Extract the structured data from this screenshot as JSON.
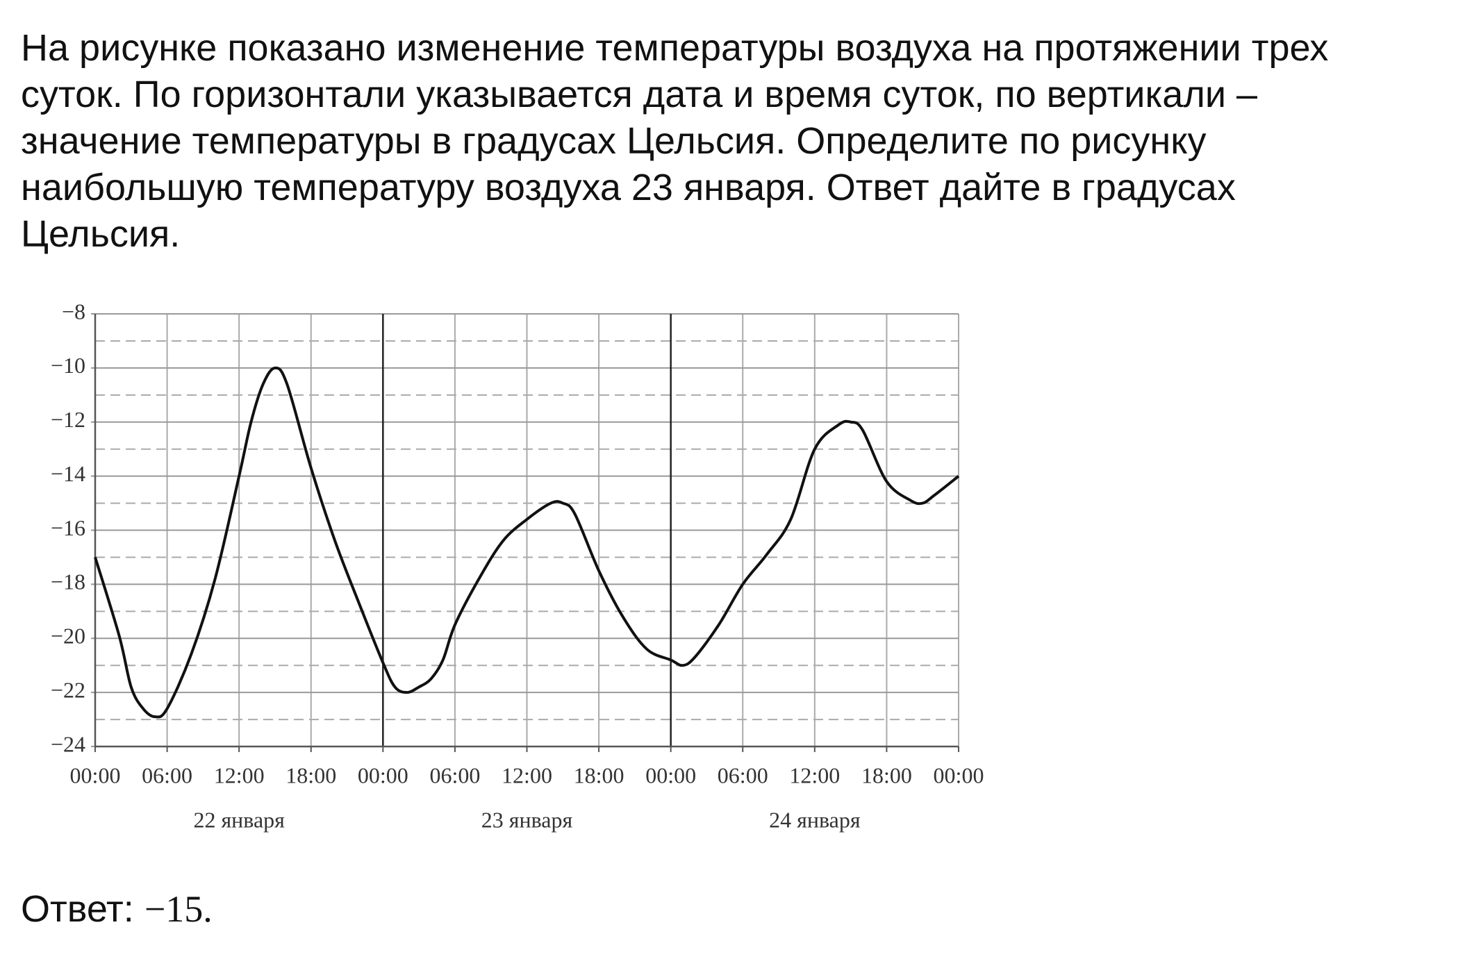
{
  "question_lines": [
    "На рисунке показано изменение температуры воздуха на протяжении трех",
    "суток. По горизонтали указывается дата и время суток, по вертикали –",
    "значение температуры в градусах Цельсия. Определите по рисунку",
    "наибольшую температуру воздуха 23 января. Ответ дайте в градусах",
    "Цельсия."
  ],
  "chart_data": {
    "type": "line",
    "x": [
      0,
      2,
      3,
      4,
      5,
      6,
      8,
      10,
      12,
      13,
      14,
      15,
      16,
      18,
      20,
      22,
      24,
      25,
      26,
      27,
      28,
      29,
      30,
      32,
      34,
      36,
      38,
      39,
      40,
      42,
      44,
      46,
      48,
      49,
      50,
      52,
      54,
      56,
      58,
      60,
      62,
      63,
      64,
      66,
      68,
      69,
      70,
      72
    ],
    "series": [
      {
        "color": "#111111",
        "values": [
          -17,
          -19.9,
          -21.8,
          -22.6,
          -22.9,
          -22.6,
          -20.6,
          -17.8,
          -14,
          -12,
          -10.6,
          -10,
          -10.6,
          -13.7,
          -16.4,
          -18.7,
          -20.9,
          -21.8,
          -22,
          -21.8,
          -21.5,
          -20.8,
          -19.5,
          -17.8,
          -16.4,
          -15.6,
          -15,
          -15,
          -15.4,
          -17.5,
          -19.2,
          -20.4,
          -20.8,
          -21,
          -20.7,
          -19.5,
          -18,
          -16.9,
          -15.6,
          -13,
          -12.1,
          -12,
          -12.3,
          -14.2,
          -14.9,
          -15,
          -14.7,
          -14
        ]
      }
    ],
    "xlim": [
      0,
      72
    ],
    "ylim": [
      -24,
      -8
    ],
    "xticks": [
      {
        "value": 0,
        "label": "00:00"
      },
      {
        "value": 6,
        "label": "06:00"
      },
      {
        "value": 12,
        "label": "12:00"
      },
      {
        "value": 18,
        "label": "18:00"
      },
      {
        "value": 24,
        "label": "00:00"
      },
      {
        "value": 30,
        "label": "06:00"
      },
      {
        "value": 36,
        "label": "12:00"
      },
      {
        "value": 42,
        "label": "18:00"
      },
      {
        "value": 48,
        "label": "00:00"
      },
      {
        "value": 54,
        "label": "06:00"
      },
      {
        "value": 60,
        "label": "12:00"
      },
      {
        "value": 66,
        "label": "18:00"
      },
      {
        "value": 72,
        "label": "00:00"
      }
    ],
    "yticks": [
      {
        "value": -24,
        "label": "−24"
      },
      {
        "value": -22,
        "label": "−22"
      },
      {
        "value": -20,
        "label": "−20"
      },
      {
        "value": -18,
        "label": "−18"
      },
      {
        "value": -16,
        "label": "−16"
      },
      {
        "value": -14,
        "label": "−14"
      },
      {
        "value": -12,
        "label": "−12"
      },
      {
        "value": -10,
        "label": "−10"
      },
      {
        "value": -8,
        "label": "−8"
      }
    ],
    "minor_yticks": [
      -23,
      -21,
      -19,
      -17,
      -15,
      -13,
      -11,
      -9
    ],
    "day_boundaries": [
      24,
      48
    ],
    "day_labels": [
      {
        "value": 12,
        "label": "22 января"
      },
      {
        "value": 36,
        "label": "23 января"
      },
      {
        "value": 60,
        "label": "24 января"
      }
    ],
    "grid": true
  },
  "answer": {
    "label": "Ответ:",
    "value": "−15."
  }
}
